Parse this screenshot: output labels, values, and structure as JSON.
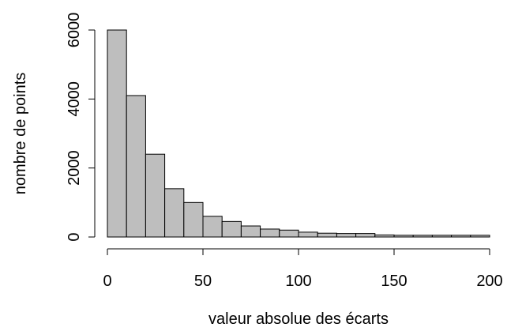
{
  "chart_data": {
    "type": "bar",
    "title": "",
    "xlabel": "valeur absolue des écarts",
    "ylabel": "nombre de points",
    "x_ticks": [
      0,
      50,
      100,
      150,
      200
    ],
    "y_ticks": [
      0,
      2000,
      4000,
      6000
    ],
    "xlim": [
      0,
      200
    ],
    "ylim": [
      0,
      6000
    ],
    "grid": false,
    "bin_width": 10,
    "bins": [
      {
        "start": 0,
        "end": 10,
        "count": 6000
      },
      {
        "start": 10,
        "end": 20,
        "count": 4100
      },
      {
        "start": 20,
        "end": 30,
        "count": 2400
      },
      {
        "start": 30,
        "end": 40,
        "count": 1400
      },
      {
        "start": 40,
        "end": 50,
        "count": 1000
      },
      {
        "start": 50,
        "end": 60,
        "count": 600
      },
      {
        "start": 60,
        "end": 70,
        "count": 450
      },
      {
        "start": 70,
        "end": 80,
        "count": 320
      },
      {
        "start": 80,
        "end": 90,
        "count": 230
      },
      {
        "start": 90,
        "end": 100,
        "count": 200
      },
      {
        "start": 100,
        "end": 110,
        "count": 140
      },
      {
        "start": 110,
        "end": 120,
        "count": 110
      },
      {
        "start": 120,
        "end": 130,
        "count": 100
      },
      {
        "start": 130,
        "end": 140,
        "count": 100
      },
      {
        "start": 140,
        "end": 150,
        "count": 60
      },
      {
        "start": 150,
        "end": 160,
        "count": 50
      },
      {
        "start": 160,
        "end": 170,
        "count": 50
      },
      {
        "start": 170,
        "end": 180,
        "count": 50
      },
      {
        "start": 180,
        "end": 190,
        "count": 50
      },
      {
        "start": 190,
        "end": 200,
        "count": 50
      }
    ],
    "colors": {
      "bar_fill": "#bebebe",
      "bar_stroke": "#000000",
      "axis": "#000000"
    }
  }
}
